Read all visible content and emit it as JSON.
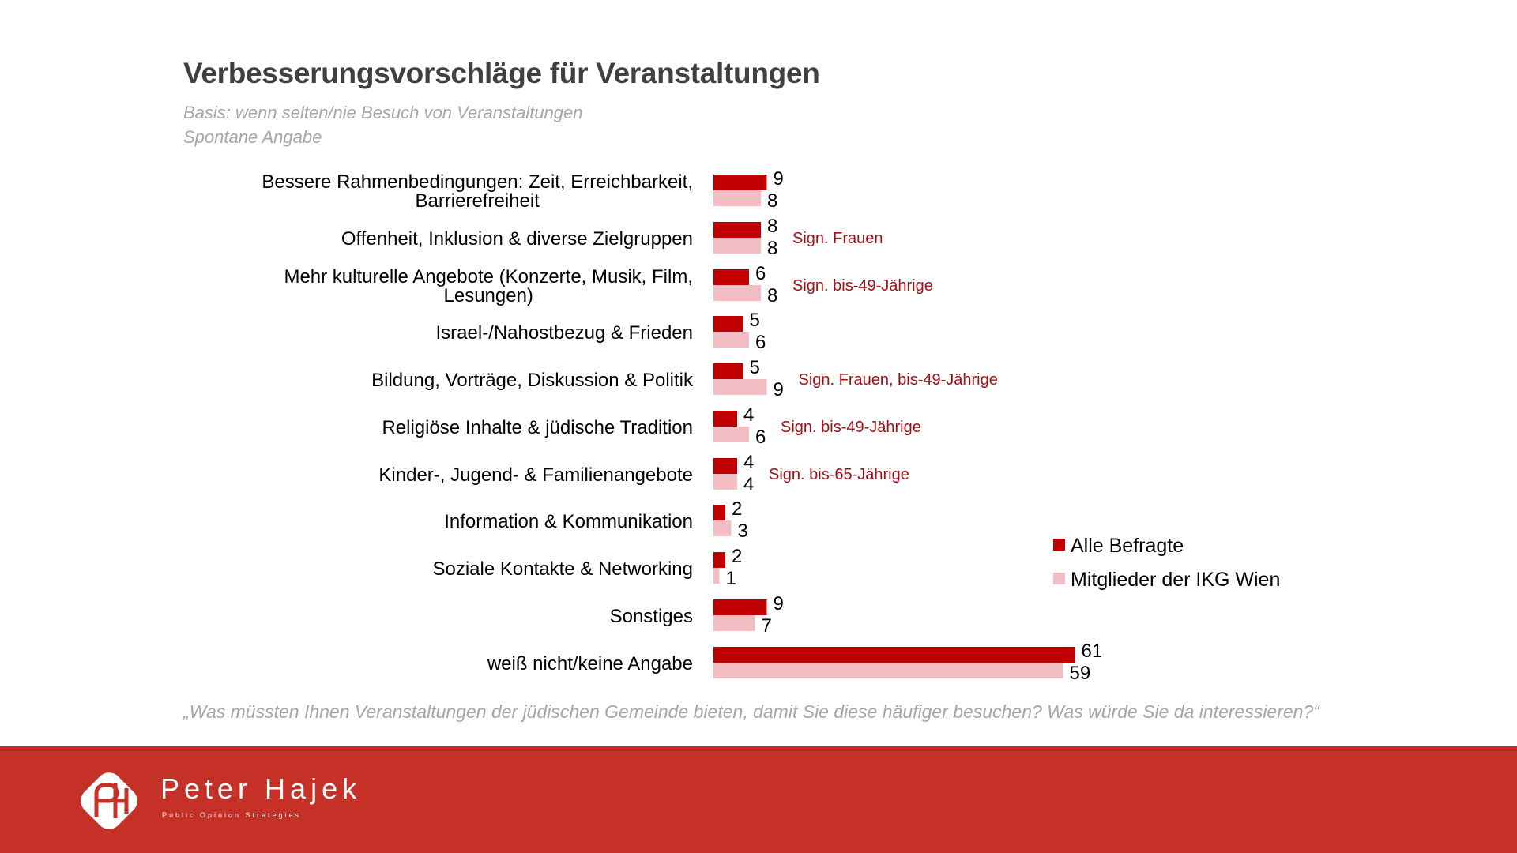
{
  "header": {
    "title": "Verbesserungsvorschläge für Veranstaltungen",
    "subtitle_1": "Basis: wenn selten/nie Besuch von Veranstaltungen",
    "subtitle_2": "Spontane Angabe"
  },
  "chart_data": {
    "type": "bar",
    "orientation": "horizontal",
    "title": "Verbesserungsvorschläge für Veranstaltungen",
    "xlabel": "",
    "ylabel": "",
    "grid": false,
    "legend_position": "right",
    "xlim": [
      0,
      65
    ],
    "categories": [
      [
        "Bessere Rahmenbedingungen: Zeit, Erreichbarkeit,",
        "Barrierefreiheit"
      ],
      [
        "Offenheit, Inklusion & diverse Zielgruppen"
      ],
      [
        "Mehr kulturelle Angebote (Konzerte, Musik, Film,",
        "Lesungen)"
      ],
      [
        "Israel-/Nahostbezug & Frieden"
      ],
      [
        "Bildung, Vorträge, Diskussion & Politik"
      ],
      [
        "Religiöse Inhalte & jüdische Tradition"
      ],
      [
        "Kinder-, Jugend- & Familienangebote"
      ],
      [
        "Information & Kommunikation"
      ],
      [
        "Soziale Kontakte & Networking"
      ],
      [
        "Sonstiges"
      ],
      [
        "weiß nicht/keine Angabe"
      ]
    ],
    "series": [
      {
        "name": "Alle Befragte",
        "color": "#c00000",
        "values": [
          9,
          8,
          6,
          5,
          5,
          4,
          4,
          2,
          2,
          9,
          61
        ]
      },
      {
        "name": "Mitglieder der IKG Wien",
        "color": "#f2bdc3",
        "values": [
          8,
          8,
          8,
          6,
          9,
          6,
          4,
          3,
          1,
          7,
          59
        ]
      }
    ],
    "annotations": [
      "",
      "Sign. Frauen",
      "Sign. bis-49-Jährige",
      "",
      "Sign. Frauen, bis-49-Jährige",
      "Sign. bis-49-Jährige",
      "Sign. bis-65-Jährige",
      "",
      "",
      "",
      ""
    ],
    "annotation_color": "#a50f15"
  },
  "footnote": "„Was müssten Ihnen Veranstaltungen der jüdischen Gemeinde bieten, damit Sie diese häufiger besuchen? Was würde Sie da interessieren?“",
  "footer": {
    "brand": "Peter Hajek",
    "tagline": "Public Opinion Strategies",
    "background": "#c63127",
    "logo_icon": "ph-monogram-logo"
  }
}
